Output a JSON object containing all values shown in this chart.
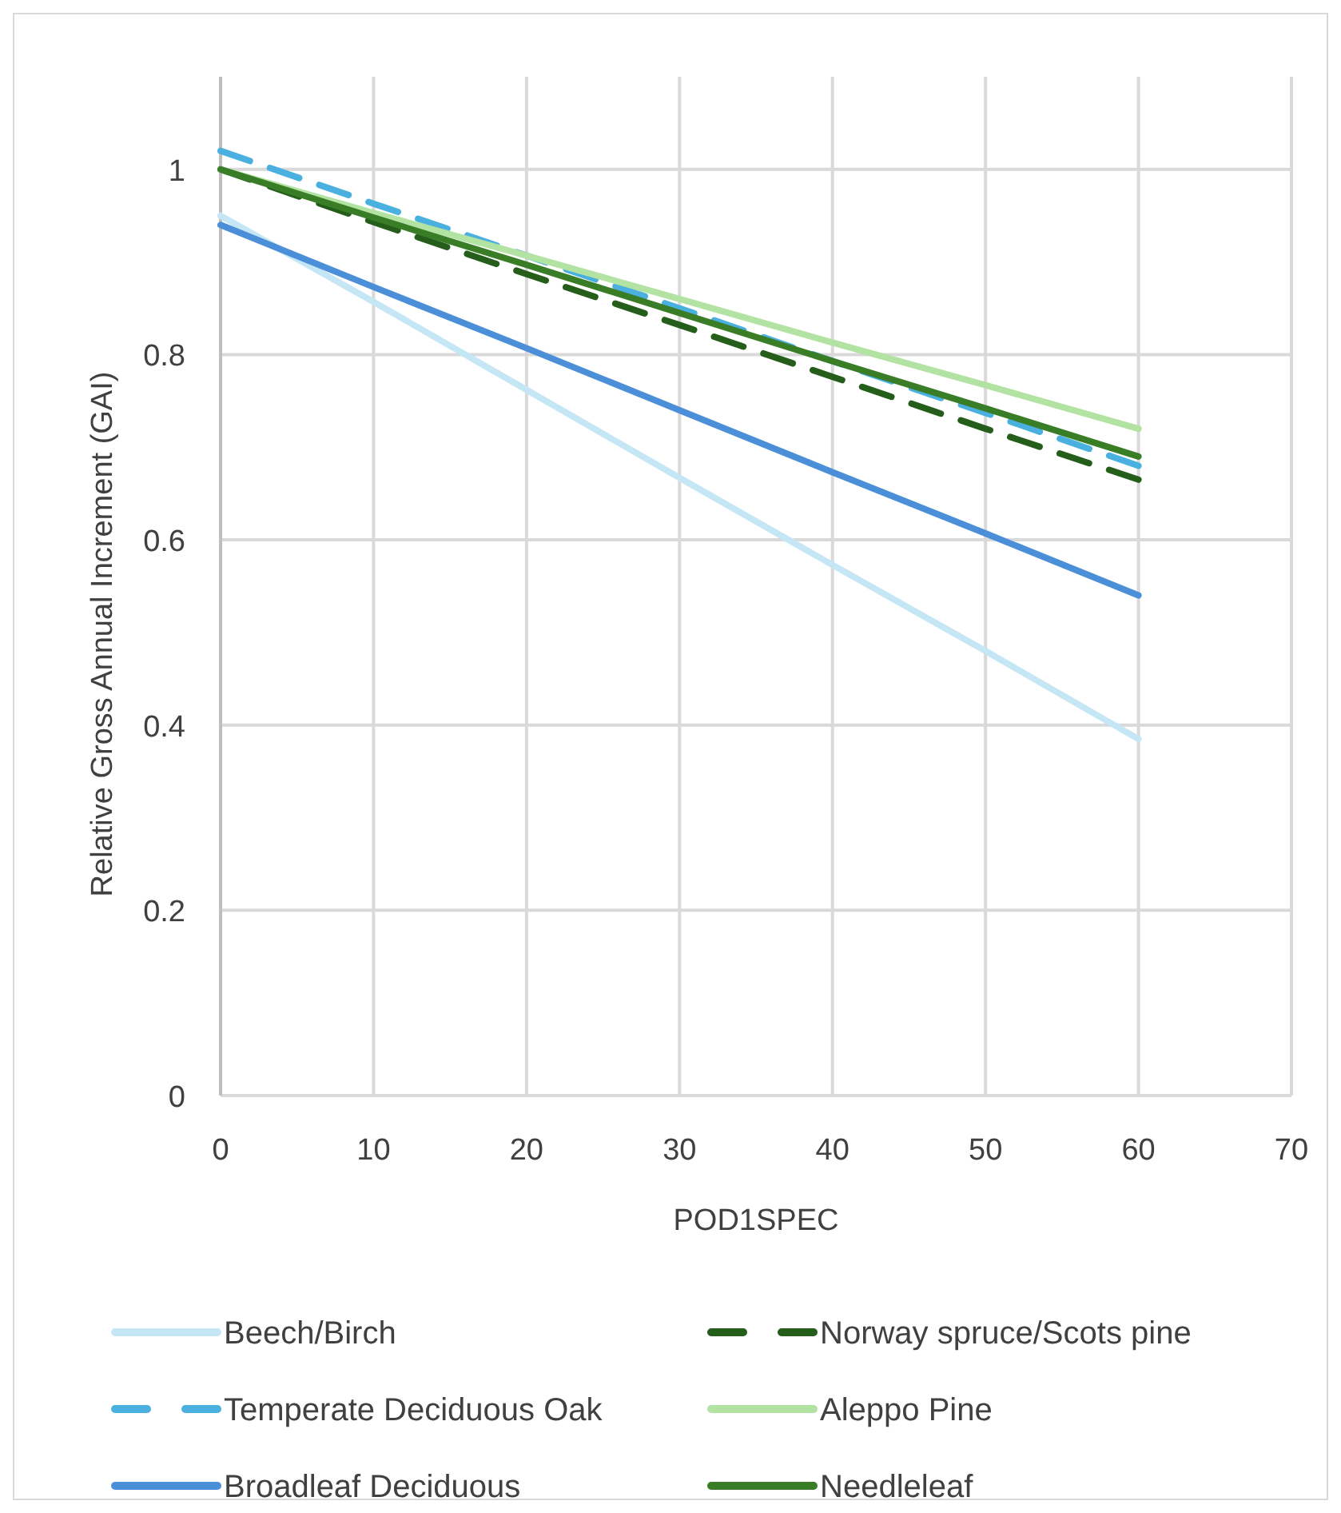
{
  "chart_data": {
    "type": "line",
    "xlabel": "POD1SPEC",
    "ylabel": "Relative Gross Annual Increment (GAI)",
    "x": [
      0,
      10,
      20,
      30,
      40,
      50,
      60
    ],
    "series": [
      {
        "name": "Beech/Birch",
        "color": "#c5e6f5",
        "values": [
          0.95,
          0.857,
          0.762,
          0.667,
          0.573,
          0.48,
          0.385
        ]
      },
      {
        "name": "Norway spruce/Scots pine",
        "color": "#255e1a",
        "line_style": "dashed",
        "values": [
          1.0,
          0.943,
          0.887,
          0.832,
          0.776,
          0.72,
          0.665
        ]
      },
      {
        "name": "Temperate Deciduous Oak",
        "color": "#4ab0e0",
        "line_style": "dashed",
        "values": [
          1.02,
          0.963,
          0.907,
          0.85,
          0.793,
          0.737,
          0.68
        ]
      },
      {
        "name": "Aleppo Pine",
        "color": "#b3e3a2",
        "values": [
          1.0,
          0.953,
          0.907,
          0.86,
          0.813,
          0.767,
          0.72
        ]
      },
      {
        "name": "Broadleaf Deciduous",
        "color": "#4a8fd8",
        "values": [
          0.94,
          0.873,
          0.807,
          0.74,
          0.673,
          0.607,
          0.54
        ]
      },
      {
        "name": "Needleleaf",
        "color": "#3a7d27",
        "values": [
          1.0,
          0.948,
          0.897,
          0.845,
          0.793,
          0.742,
          0.69
        ]
      }
    ],
    "xlim": [
      0,
      70
    ],
    "xticks": [
      0,
      10,
      20,
      30,
      40,
      50,
      60,
      70
    ],
    "ylim": [
      0,
      1.1
    ],
    "yticks": [
      0,
      0.2,
      0.4,
      0.6,
      0.8,
      1
    ],
    "grid": true,
    "legend": "bottom",
    "line_style": "solid"
  }
}
